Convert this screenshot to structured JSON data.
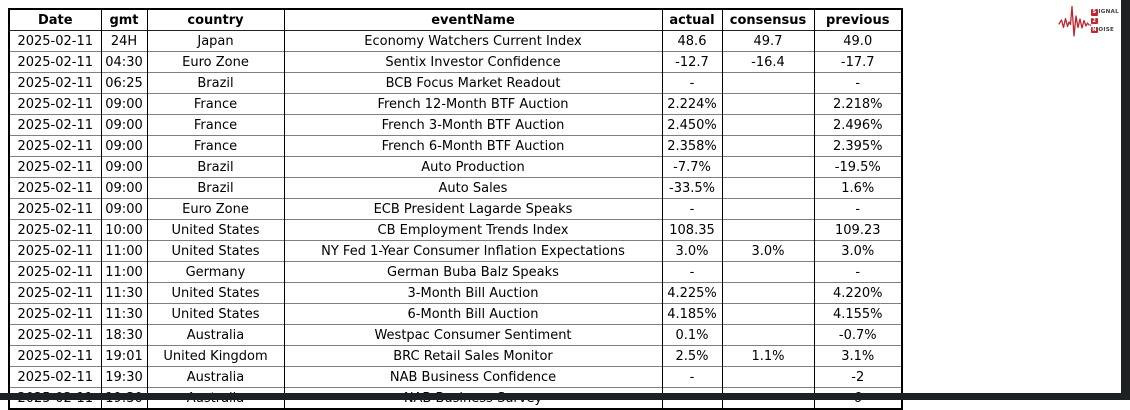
{
  "page": {
    "background": "#ffffff",
    "edge_bar_color": "#1e2124"
  },
  "logo": {
    "name": "Signal 2 Noise",
    "red": "#bf2730",
    "dark_text_color": "#3f3f3f",
    "line1_boxed": "S",
    "line1_rest": "IGNAL",
    "line2_boxed": "2",
    "line3_boxed": "N",
    "line3_rest": "OISE"
  },
  "table": {
    "columns": [
      "Date",
      "gmt",
      "country",
      "eventName",
      "actual",
      "consensus",
      "previous"
    ],
    "rows": [
      [
        "2025-02-11",
        "24H",
        "Japan",
        "Economy Watchers Current Index",
        "48.6",
        "49.7",
        "49.0"
      ],
      [
        "2025-02-11",
        "04:30",
        "Euro Zone",
        "Sentix Investor Confidence",
        "-12.7",
        "-16.4",
        "-17.7"
      ],
      [
        "2025-02-11",
        "06:25",
        "Brazil",
        "BCB Focus Market Readout",
        "-",
        "",
        "-"
      ],
      [
        "2025-02-11",
        "09:00",
        "France",
        "French 12-Month BTF Auction",
        "2.224%",
        "",
        "2.218%"
      ],
      [
        "2025-02-11",
        "09:00",
        "France",
        "French 3-Month BTF Auction",
        "2.450%",
        "",
        "2.496%"
      ],
      [
        "2025-02-11",
        "09:00",
        "France",
        "French 6-Month BTF Auction",
        "2.358%",
        "",
        "2.395%"
      ],
      [
        "2025-02-11",
        "09:00",
        "Brazil",
        "Auto Production",
        "-7.7%",
        "",
        "-19.5%"
      ],
      [
        "2025-02-11",
        "09:00",
        "Brazil",
        "Auto Sales",
        "-33.5%",
        "",
        "1.6%"
      ],
      [
        "2025-02-11",
        "09:00",
        "Euro Zone",
        "ECB President Lagarde Speaks",
        "-",
        "",
        "-"
      ],
      [
        "2025-02-11",
        "10:00",
        "United States",
        "CB Employment Trends Index",
        "108.35",
        "",
        "109.23"
      ],
      [
        "2025-02-11",
        "11:00",
        "United States",
        "NY Fed 1-Year Consumer Inflation Expectations",
        "3.0%",
        "3.0%",
        "3.0%"
      ],
      [
        "2025-02-11",
        "11:00",
        "Germany",
        "German Buba Balz Speaks",
        "-",
        "",
        "-"
      ],
      [
        "2025-02-11",
        "11:30",
        "United States",
        "3-Month Bill Auction",
        "4.225%",
        "",
        "4.220%"
      ],
      [
        "2025-02-11",
        "11:30",
        "United States",
        "6-Month Bill Auction",
        "4.185%",
        "",
        "4.155%"
      ],
      [
        "2025-02-11",
        "18:30",
        "Australia",
        "Westpac Consumer Sentiment",
        "0.1%",
        "",
        "-0.7%"
      ],
      [
        "2025-02-11",
        "19:01",
        "United Kingdom",
        "BRC Retail Sales Monitor",
        "2.5%",
        "1.1%",
        "3.1%"
      ],
      [
        "2025-02-11",
        "19:30",
        "Australia",
        "NAB Business Confidence",
        "-",
        "",
        "-2"
      ],
      [
        "2025-02-11",
        "19:30",
        "Australia",
        "NAB Business Survey",
        "-",
        "",
        "6"
      ]
    ]
  }
}
